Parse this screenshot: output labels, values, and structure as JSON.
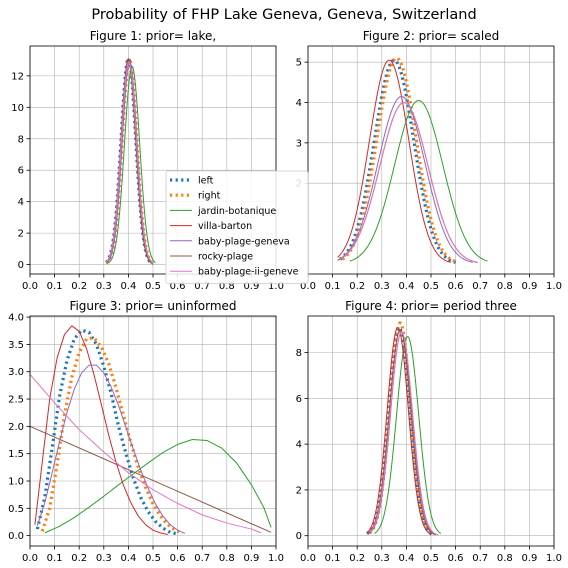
{
  "title": "Probability of FHP Lake Geneva, Geneva, Switzerland",
  "legend": {
    "placement": "center (overlapping Figure 1 and Figure 2)",
    "entries": [
      {
        "name": "left",
        "color": "#1f77b4",
        "style": "dotted"
      },
      {
        "name": "right",
        "color": "#ff7f0e",
        "style": "dotted"
      },
      {
        "name": "jardin-botanique",
        "color": "#2ca02c",
        "style": "solid"
      },
      {
        "name": "villa-barton",
        "color": "#d62728",
        "style": "solid"
      },
      {
        "name": "baby-plage-geneva",
        "color": "#9467bd",
        "style": "solid"
      },
      {
        "name": "rocky-plage",
        "color": "#8c564b",
        "style": "solid"
      },
      {
        "name": "baby-plage-ii-geneve",
        "color": "#e377c2",
        "style": "solid"
      }
    ]
  },
  "chart_data": [
    {
      "type": "line",
      "title": "Figure 1: prior= lake,",
      "xlim": [
        0.0,
        1.0
      ],
      "ylim": [
        -0.6,
        13.9
      ],
      "xticks": [
        "0.0",
        "0.1",
        "0.2",
        "0.3",
        "0.4",
        "0.5",
        "0.6",
        "0.7",
        "0.8",
        "0.9",
        "1.0"
      ],
      "xtick_values": [
        0,
        0.1,
        0.2,
        0.3,
        0.4,
        0.5,
        0.6,
        0.7,
        0.8,
        0.9,
        1.0
      ],
      "yticks": [
        "0",
        "2",
        "4",
        "6",
        "8",
        "10",
        "12"
      ],
      "ytick_values": [
        0,
        2,
        4,
        6,
        8,
        10,
        12
      ],
      "grid": true,
      "series": [
        {
          "name": "left",
          "color": "#1f77b4",
          "style": "dotted",
          "center": 0.4,
          "peak": 13.1,
          "sd": 0.03,
          "x_range": [
            0.31,
            0.5
          ]
        },
        {
          "name": "right",
          "color": "#ff7f0e",
          "style": "dotted",
          "center": 0.405,
          "peak": 13.0,
          "sd": 0.03,
          "x_range": [
            0.31,
            0.5
          ]
        },
        {
          "name": "jardin-botanique",
          "color": "#2ca02c",
          "style": "solid",
          "center": 0.415,
          "peak": 12.6,
          "sd": 0.031,
          "x_range": [
            0.32,
            0.51
          ]
        },
        {
          "name": "villa-barton",
          "color": "#d62728",
          "style": "solid",
          "center": 0.4,
          "peak": 13.1,
          "sd": 0.03,
          "x_range": [
            0.31,
            0.5
          ]
        },
        {
          "name": "baby-plage-geneva",
          "color": "#9467bd",
          "style": "solid",
          "center": 0.405,
          "peak": 12.9,
          "sd": 0.03,
          "x_range": [
            0.31,
            0.5
          ]
        },
        {
          "name": "rocky-plage",
          "color": "#8c564b",
          "style": "solid",
          "center": 0.4,
          "peak": 13.0,
          "sd": 0.03,
          "x_range": [
            0.31,
            0.5
          ]
        },
        {
          "name": "baby-plage-ii-geneve",
          "color": "#e377c2",
          "style": "solid",
          "center": 0.402,
          "peak": 12.9,
          "sd": 0.031,
          "x_range": [
            0.31,
            0.5
          ]
        }
      ]
    },
    {
      "type": "line",
      "title": "Figure 2: prior= scaled",
      "xlim": [
        0.0,
        1.0
      ],
      "ylim": [
        -0.25,
        5.4
      ],
      "xticks": [
        "0.0",
        "0.1",
        "0.2",
        "0.3",
        "0.4",
        "0.5",
        "0.6",
        "0.7",
        "0.8",
        "0.9",
        "1.0"
      ],
      "xtick_values": [
        0,
        0.1,
        0.2,
        0.3,
        0.4,
        0.5,
        0.6,
        0.7,
        0.8,
        0.9,
        1.0
      ],
      "yticks": [
        "2",
        "3",
        "4",
        "5"
      ],
      "ytick_values": [
        2,
        3,
        4,
        5
      ],
      "grid": true,
      "series": [
        {
          "name": "left",
          "color": "#1f77b4",
          "style": "dotted",
          "center": 0.35,
          "peak": 5.05,
          "sd": 0.08,
          "x_range": [
            0.13,
            0.6
          ]
        },
        {
          "name": "right",
          "color": "#ff7f0e",
          "style": "dotted",
          "center": 0.36,
          "peak": 5.1,
          "sd": 0.08,
          "x_range": [
            0.14,
            0.6
          ]
        },
        {
          "name": "jardin-botanique",
          "color": "#2ca02c",
          "style": "solid",
          "center": 0.45,
          "peak": 4.05,
          "sd": 0.098,
          "x_range": [
            0.17,
            0.73
          ]
        },
        {
          "name": "villa-barton",
          "color": "#d62728",
          "style": "solid",
          "center": 0.33,
          "peak": 5.05,
          "sd": 0.08,
          "x_range": [
            0.12,
            0.58
          ]
        },
        {
          "name": "baby-plage-geneva",
          "color": "#9467bd",
          "style": "solid",
          "center": 0.38,
          "peak": 4.15,
          "sd": 0.095,
          "x_range": [
            0.13,
            0.67
          ]
        },
        {
          "name": "rocky-plage",
          "color": "#8c564b",
          "style": "solid",
          "center": 0.39,
          "peak": 4.0,
          "sd": 0.098,
          "x_range": [
            0.12,
            0.69
          ]
        },
        {
          "name": "baby-plage-ii-geneve",
          "color": "#e377c2",
          "style": "solid",
          "center": 0.39,
          "peak": 4.0,
          "sd": 0.098,
          "x_range": [
            0.13,
            0.68
          ]
        }
      ]
    },
    {
      "type": "line",
      "title": "Figure 3: prior= uninformed",
      "xlim": [
        0.0,
        1.0
      ],
      "ylim": [
        -0.19,
        4.02
      ],
      "xticks": [
        "0.0",
        "0.1",
        "0.2",
        "0.3",
        "0.4",
        "0.5",
        "0.6",
        "0.7",
        "0.8",
        "0.9",
        "1.0"
      ],
      "xtick_values": [
        0,
        0.1,
        0.2,
        0.3,
        0.4,
        0.5,
        0.6,
        0.7,
        0.8,
        0.9,
        1.0
      ],
      "yticks": [
        "0.0",
        "0.5",
        "1.0",
        "1.5",
        "2.0",
        "2.5",
        "3.0",
        "3.5",
        "4.0"
      ],
      "ytick_values": [
        0,
        0.5,
        1.0,
        1.5,
        2.0,
        2.5,
        3.0,
        3.5,
        4.0
      ],
      "grid": true,
      "series": [
        {
          "name": "left",
          "color": "#1f77b4",
          "style": "dotted",
          "points": [
            [
              0.03,
              0.12
            ],
            [
              0.06,
              0.7
            ],
            [
              0.09,
              1.6
            ],
            [
              0.12,
              2.55
            ],
            [
              0.15,
              3.2
            ],
            [
              0.18,
              3.6
            ],
            [
              0.21,
              3.76
            ],
            [
              0.24,
              3.72
            ],
            [
              0.27,
              3.5
            ],
            [
              0.3,
              3.1
            ],
            [
              0.33,
              2.6
            ],
            [
              0.36,
              2.0
            ],
            [
              0.39,
              1.5
            ],
            [
              0.42,
              1.05
            ],
            [
              0.45,
              0.7
            ],
            [
              0.48,
              0.44
            ],
            [
              0.51,
              0.26
            ],
            [
              0.54,
              0.14
            ],
            [
              0.57,
              0.06
            ],
            [
              0.6,
              0.03
            ]
          ]
        },
        {
          "name": "right",
          "color": "#ff7f0e",
          "style": "dotted",
          "points": [
            [
              0.05,
              0.08
            ],
            [
              0.08,
              0.5
            ],
            [
              0.11,
              1.3
            ],
            [
              0.14,
              2.2
            ],
            [
              0.17,
              2.9
            ],
            [
              0.2,
              3.35
            ],
            [
              0.23,
              3.6
            ],
            [
              0.26,
              3.62
            ],
            [
              0.29,
              3.45
            ],
            [
              0.32,
              3.15
            ],
            [
              0.35,
              2.7
            ],
            [
              0.38,
              2.2
            ],
            [
              0.41,
              1.7
            ],
            [
              0.44,
              1.25
            ],
            [
              0.47,
              0.88
            ],
            [
              0.5,
              0.58
            ],
            [
              0.53,
              0.36
            ],
            [
              0.56,
              0.2
            ],
            [
              0.59,
              0.1
            ],
            [
              0.62,
              0.04
            ]
          ]
        },
        {
          "name": "jardin-botanique",
          "color": "#2ca02c",
          "style": "solid",
          "points": [
            [
              0.06,
              0.05
            ],
            [
              0.12,
              0.17
            ],
            [
              0.18,
              0.33
            ],
            [
              0.24,
              0.52
            ],
            [
              0.3,
              0.72
            ],
            [
              0.36,
              0.93
            ],
            [
              0.42,
              1.13
            ],
            [
              0.48,
              1.33
            ],
            [
              0.54,
              1.52
            ],
            [
              0.6,
              1.67
            ],
            [
              0.66,
              1.76
            ],
            [
              0.72,
              1.74
            ],
            [
              0.78,
              1.6
            ],
            [
              0.84,
              1.33
            ],
            [
              0.9,
              0.93
            ],
            [
              0.95,
              0.52
            ],
            [
              0.98,
              0.15
            ]
          ]
        },
        {
          "name": "villa-barton",
          "color": "#d62728",
          "style": "solid",
          "points": [
            [
              0.02,
              0.2
            ],
            [
              0.05,
              1.35
            ],
            [
              0.08,
              2.5
            ],
            [
              0.11,
              3.25
            ],
            [
              0.14,
              3.68
            ],
            [
              0.17,
              3.84
            ],
            [
              0.2,
              3.74
            ],
            [
              0.23,
              3.42
            ],
            [
              0.26,
              2.95
            ],
            [
              0.29,
              2.4
            ],
            [
              0.32,
              1.84
            ],
            [
              0.35,
              1.34
            ],
            [
              0.38,
              0.92
            ],
            [
              0.41,
              0.6
            ],
            [
              0.44,
              0.36
            ],
            [
              0.47,
              0.2
            ],
            [
              0.5,
              0.1
            ],
            [
              0.53,
              0.05
            ],
            [
              0.56,
              0.02
            ]
          ]
        },
        {
          "name": "baby-plage-geneva",
          "color": "#9467bd",
          "style": "solid",
          "points": [
            [
              0.03,
              0.18
            ],
            [
              0.06,
              0.6
            ],
            [
              0.09,
              1.15
            ],
            [
              0.12,
              1.72
            ],
            [
              0.15,
              2.25
            ],
            [
              0.18,
              2.68
            ],
            [
              0.21,
              2.98
            ],
            [
              0.24,
              3.12
            ],
            [
              0.27,
              3.12
            ],
            [
              0.3,
              2.98
            ],
            [
              0.33,
              2.72
            ],
            [
              0.36,
              2.38
            ],
            [
              0.39,
              1.98
            ],
            [
              0.42,
              1.58
            ],
            [
              0.45,
              1.2
            ],
            [
              0.48,
              0.87
            ],
            [
              0.51,
              0.58
            ],
            [
              0.54,
              0.36
            ],
            [
              0.57,
              0.2
            ],
            [
              0.6,
              0.1
            ],
            [
              0.63,
              0.04
            ]
          ]
        },
        {
          "name": "rocky-plage",
          "color": "#8c564b",
          "style": "solid",
          "points": [
            [
              0.0,
              2.0
            ],
            [
              0.98,
              0.06
            ]
          ]
        },
        {
          "name": "baby-plage-ii-geneve",
          "color": "#e377c2",
          "style": "solid",
          "points": [
            [
              0.0,
              2.95
            ],
            [
              0.1,
              2.43
            ],
            [
              0.2,
              1.94
            ],
            [
              0.3,
              1.53
            ],
            [
              0.4,
              1.15
            ],
            [
              0.5,
              0.84
            ],
            [
              0.6,
              0.59
            ],
            [
              0.7,
              0.38
            ],
            [
              0.8,
              0.23
            ],
            [
              0.9,
              0.12
            ],
            [
              0.94,
              0.05
            ]
          ]
        }
      ]
    },
    {
      "type": "line",
      "title": "Figure 4: prior= period three",
      "xlim": [
        0.0,
        1.0
      ],
      "ylim": [
        -0.45,
        9.6
      ],
      "xticks": [
        "0.0",
        "0.1",
        "0.2",
        "0.3",
        "0.4",
        "0.5",
        "0.6",
        "0.7",
        "0.8",
        "0.9",
        "1.0"
      ],
      "xtick_values": [
        0,
        0.1,
        0.2,
        0.3,
        0.4,
        0.5,
        0.6,
        0.7,
        0.8,
        0.9,
        1.0
      ],
      "yticks": [
        "0",
        "2",
        "4",
        "6",
        "8"
      ],
      "ytick_values": [
        0,
        2,
        4,
        6,
        8
      ],
      "grid": true,
      "series": [
        {
          "name": "left",
          "color": "#1f77b4",
          "style": "dotted",
          "center": 0.37,
          "peak": 9.1,
          "sd": 0.043,
          "x_range": [
            0.24,
            0.51
          ]
        },
        {
          "name": "right",
          "color": "#ff7f0e",
          "style": "dotted",
          "center": 0.375,
          "peak": 9.3,
          "sd": 0.042,
          "x_range": [
            0.25,
            0.51
          ]
        },
        {
          "name": "jardin-botanique",
          "color": "#2ca02c",
          "style": "solid",
          "center": 0.405,
          "peak": 8.7,
          "sd": 0.045,
          "x_range": [
            0.27,
            0.54
          ]
        },
        {
          "name": "villa-barton",
          "color": "#d62728",
          "style": "solid",
          "center": 0.365,
          "peak": 9.1,
          "sd": 0.043,
          "x_range": [
            0.24,
            0.5
          ]
        },
        {
          "name": "baby-plage-geneva",
          "color": "#9467bd",
          "style": "solid",
          "center": 0.38,
          "peak": 8.9,
          "sd": 0.044,
          "x_range": [
            0.25,
            0.52
          ]
        },
        {
          "name": "rocky-plage",
          "color": "#8c564b",
          "style": "solid",
          "center": 0.375,
          "peak": 9.0,
          "sd": 0.044,
          "x_range": [
            0.24,
            0.52
          ]
        },
        {
          "name": "baby-plage-ii-geneve",
          "color": "#e377c2",
          "style": "solid",
          "center": 0.38,
          "peak": 8.9,
          "sd": 0.045,
          "x_range": [
            0.25,
            0.53
          ]
        }
      ]
    }
  ]
}
